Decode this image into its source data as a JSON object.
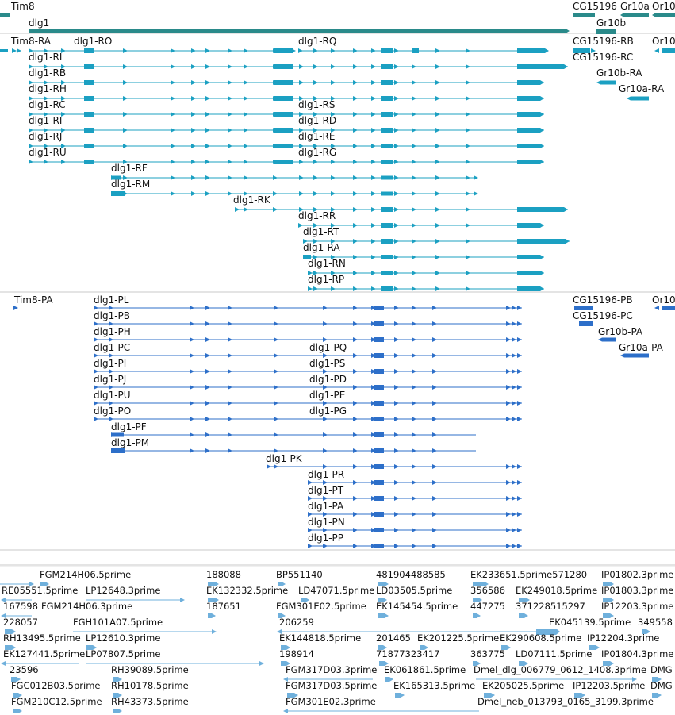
{
  "colors": {
    "gene": "#2a8a8a",
    "mrna": "#1ba0c2",
    "cds": "#2d6fc9",
    "est": "#6fb0dc",
    "divider": "#c8c8c8",
    "text": "#111111"
  },
  "tracks": {
    "gene": {
      "labels": [
        "Tim8",
        "dlg1",
        "CG15196",
        "Gr10a",
        "Or10",
        "Gr10b"
      ]
    },
    "transcript": {
      "labels": [
        "Tim8-RA",
        "dlg1-RO",
        "dlg1-RQ",
        "CG15196-RB",
        "Or10",
        "dlg1-RL",
        "CG15196-RC",
        "dlg1-RB",
        "Gr10b-RA",
        "dlg1-RH",
        "Gr10a-RA",
        "dlg1-RC",
        "dlg1-RS",
        "dlg1-RI",
        "dlg1-RD",
        "dlg1-RJ",
        "dlg1-RE",
        "dlg1-RU",
        "dlg1-RG",
        "dlg1-RF",
        "dlg1-RM",
        "dlg1-RK",
        "dlg1-RR",
        "dlg1-RT",
        "dlg1-RA",
        "dlg1-RN",
        "dlg1-RP"
      ]
    },
    "protein": {
      "labels": [
        "Tim8-PA",
        "dlg1-PL",
        "CG15196-PB",
        "Or10",
        "dlg1-PB",
        "CG15196-PC",
        "dlg1-PH",
        "Gr10b-PA",
        "dlg1-PC",
        "dlg1-PQ",
        "Gr10a-PA",
        "dlg1-PI",
        "dlg1-PS",
        "dlg1-PJ",
        "dlg1-PD",
        "dlg1-PU",
        "dlg1-PE",
        "dlg1-PO",
        "dlg1-PG",
        "dlg1-PF",
        "dlg1-PM",
        "dlg1-PK",
        "dlg1-PR",
        "dlg1-PT",
        "dlg1-PA",
        "dlg1-PN",
        "dlg1-PP"
      ]
    },
    "est": {
      "labels": [
        "FGM214H06.5prime",
        "188088",
        "BP551140",
        "481904488585",
        "EK233651.5prime571280",
        "IP01802.3prime",
        "RE05551.5prime",
        "LP12648.3prime",
        "EK132332.5prime",
        "LD47071.5prime",
        "LD03505.5prime",
        "356586",
        "EK249018.5prime",
        "IP01803.3prime",
        "167598",
        "FGM214H06.3prime",
        "187651",
        "FGM301E02.5prime",
        "EK145454.5prime",
        "447275",
        "371228515297",
        "IP12203.3prime",
        "228057",
        "FGH101A07.5prime",
        "206259",
        "EK045139.5prime",
        "349558",
        "RH13495.5prime",
        "LP12610.3prime",
        "EK144818.5prime",
        "201465",
        "EK201225.5prime",
        "EK290608.5prime",
        "IP12204.3prime",
        "EK127441.5prime",
        "LP07807.5prime",
        "198914",
        "71877323417",
        "363775",
        "LD07111.5prime",
        "IP01804.3prime",
        "23596",
        "RH39089.5prime",
        "FGM317D03.3prime",
        "EK061861.5prime",
        "Dmel_dlg_006779_0612_1408.3prime",
        "DMG",
        "FGC012B03.5prime",
        "RH10178.5prime",
        "FGM317D03.5prime",
        "EK165313.5prime",
        "EK205025.5prime",
        "IP12203.5prime",
        "DMG",
        "FGM210C12.5prime",
        "RH43373.5prime",
        "FGM301E02.3prime",
        "Dmel_neb_013793_0165_3199.3prime"
      ]
    }
  }
}
